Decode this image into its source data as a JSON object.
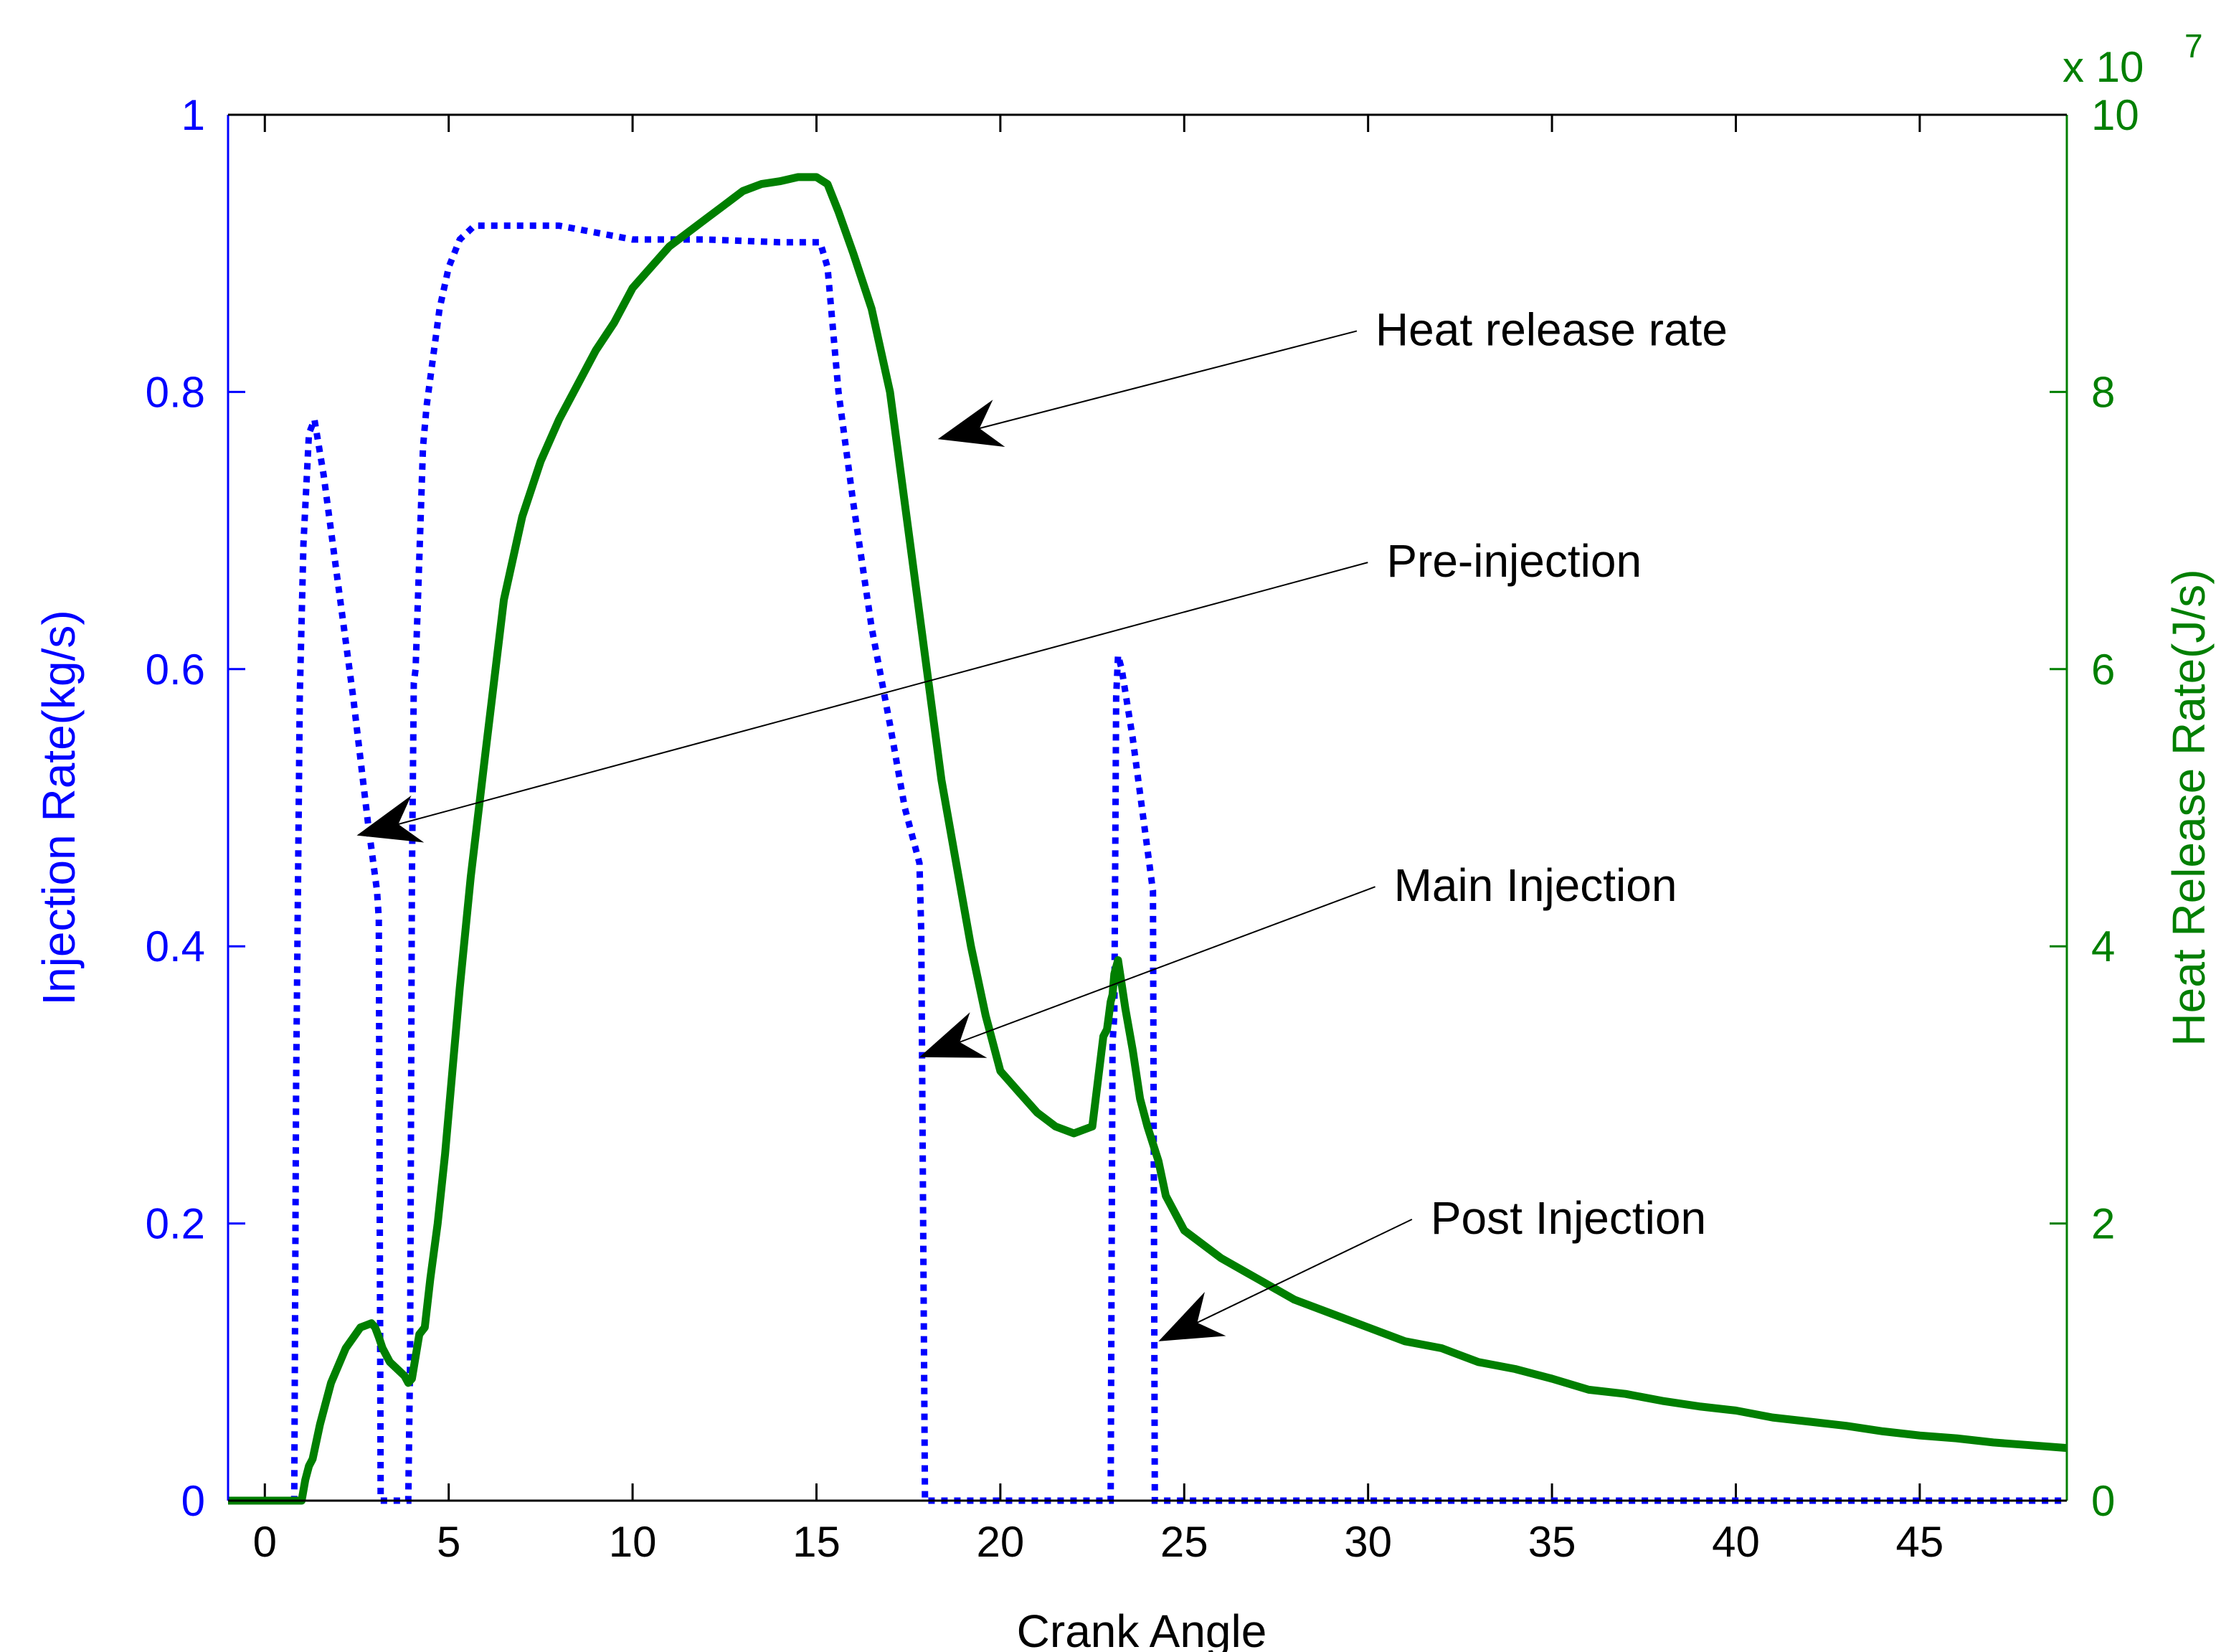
{
  "chart_data": {
    "type": "line",
    "title": "",
    "xlabel": "Crank Angle",
    "ylabel_left": "Injection Rate(kg/s)",
    "ylabel_right": "Heat Release Rate(J/s)",
    "right_axis_multiplier": "x 10",
    "right_axis_exponent": "7",
    "xlim": [
      -1,
      49
    ],
    "ylim_left": [
      0,
      1
    ],
    "ylim_right": [
      0,
      10
    ],
    "x_ticks": [
      0,
      5,
      10,
      15,
      20,
      25,
      30,
      35,
      40,
      45
    ],
    "x_tick_labels": [
      "0",
      "5",
      "10",
      "15",
      "20",
      "25",
      "30",
      "35",
      "40",
      "45"
    ],
    "y_left_ticks": [
      0,
      0.2,
      0.4,
      0.6,
      0.8,
      1
    ],
    "y_left_tick_labels": [
      "0",
      "0.2",
      "0.4",
      "0.6",
      "0.8",
      "1"
    ],
    "y_right_ticks": [
      0,
      2,
      4,
      6,
      8,
      10
    ],
    "y_right_tick_labels": [
      "0",
      "2",
      "4",
      "6",
      "8",
      "10"
    ],
    "colors": {
      "injection": "#0000ff",
      "heat": "#007f00",
      "axis": "#000000"
    },
    "series": [
      {
        "name": "Injection Rate",
        "axis": "left",
        "style": "dotted",
        "x": [
          -1,
          0.8,
          0.85,
          0.95,
          1.05,
          1.2,
          1.35,
          1.6,
          2.0,
          2.4,
          2.8,
          3.05,
          3.1,
          3.15,
          3.9,
          3.95,
          4.0,
          4.05,
          4.1,
          4.2,
          4.3,
          4.4,
          4.55,
          4.75,
          5.0,
          5.3,
          5.7,
          6.5,
          8,
          9,
          10,
          12,
          14,
          15.1,
          15.3,
          15.6,
          16.0,
          16.5,
          17.0,
          17.4,
          17.8,
          17.85,
          17.95,
          23.0,
          23.05,
          23.1,
          23.15,
          23.2,
          23.3,
          23.6,
          24.0,
          24.1,
          24.15,
          24.2,
          49
        ],
        "values": [
          0,
          0,
          0.3,
          0.58,
          0.69,
          0.77,
          0.78,
          0.74,
          0.66,
          0.58,
          0.49,
          0.44,
          0.42,
          0,
          0,
          0.1,
          0.45,
          0.59,
          0.6,
          0.68,
          0.76,
          0.79,
          0.82,
          0.86,
          0.89,
          0.91,
          0.92,
          0.92,
          0.92,
          0.915,
          0.91,
          0.91,
          0.908,
          0.908,
          0.89,
          0.8,
          0.72,
          0.63,
          0.56,
          0.5,
          0.46,
          0.41,
          0,
          0,
          0.33,
          0.35,
          0.58,
          0.61,
          0.6,
          0.55,
          0.47,
          0.45,
          0.44,
          0,
          0
        ]
      },
      {
        "name": "Heat Release Rate",
        "axis": "right",
        "style": "solid",
        "x": [
          -1,
          1.0,
          1.1,
          1.2,
          1.3,
          1.5,
          1.8,
          2.2,
          2.6,
          2.9,
          3.0,
          3.1,
          3.2,
          3.4,
          3.6,
          3.8,
          3.9,
          4.0,
          4.2,
          4.35,
          4.5,
          4.7,
          4.9,
          5.1,
          5.3,
          5.6,
          6.0,
          6.5,
          7.0,
          7.5,
          8.0,
          8.5,
          9.0,
          9.5,
          10.0,
          10.5,
          11.0,
          11.5,
          12.0,
          12.5,
          13.0,
          13.5,
          14.0,
          14.5,
          15.0,
          15.3,
          15.6,
          16.0,
          16.5,
          17.0,
          17.5,
          18.0,
          18.4,
          18.8,
          19.2,
          19.6,
          20.0,
          20.5,
          21.0,
          21.5,
          22.0,
          22.5,
          22.8,
          22.9,
          22.95,
          23.0,
          23.05,
          23.1,
          23.2,
          23.4,
          23.6,
          23.8,
          24.0,
          24.3,
          24.5,
          25,
          26,
          27,
          28,
          29,
          30,
          31,
          32,
          33,
          34,
          35,
          36,
          37,
          38,
          39,
          40,
          41,
          42,
          43,
          44,
          45,
          46,
          47,
          48,
          49
        ],
        "values": [
          0,
          0,
          0.15,
          0.25,
          0.3,
          0.55,
          0.85,
          1.1,
          1.25,
          1.28,
          1.25,
          1.18,
          1.1,
          1.0,
          0.95,
          0.9,
          0.85,
          0.88,
          1.2,
          1.25,
          1.6,
          2.0,
          2.5,
          3.1,
          3.7,
          4.5,
          5.4,
          6.5,
          7.1,
          7.5,
          7.8,
          8.05,
          8.3,
          8.5,
          8.75,
          8.9,
          9.05,
          9.15,
          9.25,
          9.35,
          9.45,
          9.5,
          9.52,
          9.55,
          9.55,
          9.5,
          9.3,
          9.0,
          8.6,
          8.0,
          7.0,
          6.0,
          5.2,
          4.6,
          4.0,
          3.5,
          3.1,
          2.95,
          2.8,
          2.7,
          2.65,
          2.7,
          3.35,
          3.4,
          3.5,
          3.6,
          3.65,
          3.8,
          3.9,
          3.55,
          3.25,
          2.9,
          2.7,
          2.45,
          2.2,
          1.95,
          1.75,
          1.6,
          1.45,
          1.35,
          1.25,
          1.15,
          1.1,
          1.0,
          0.95,
          0.88,
          0.8,
          0.77,
          0.72,
          0.68,
          0.65,
          0.6,
          0.57,
          0.54,
          0.5,
          0.47,
          0.45,
          0.42,
          0.4,
          0.38
        ]
      }
    ],
    "annotations": [
      {
        "label": "Heat release rate",
        "text_x": 30.2,
        "text_y": 0.845,
        "arrow_x": 18.3,
        "arrow_y": 0.766
      },
      {
        "label": "Pre-injection",
        "text_x": 30.5,
        "text_y": 0.678,
        "arrow_x": 2.5,
        "arrow_y": 0.48
      },
      {
        "label": "Main Injection",
        "text_x": 30.7,
        "text_y": 0.444,
        "arrow_x": 17.8,
        "arrow_y": 0.32
      },
      {
        "label": "Post Injection",
        "text_x": 31.7,
        "text_y": 0.204,
        "arrow_x": 24.3,
        "arrow_y": 0.115
      }
    ]
  }
}
